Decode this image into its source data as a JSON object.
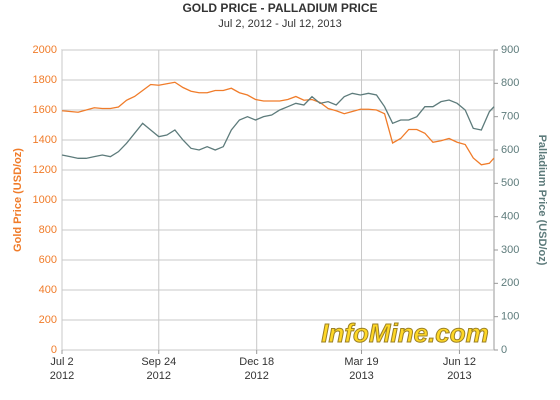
{
  "chart_data": {
    "type": "line",
    "title": "GOLD PRICE - PALLADIUM PRICE",
    "subtitle": "Jul 2, 2012 - Jul 12, 2013",
    "y_label": "Gold Price (USD/oz)",
    "y2_label": "Palladium Price (USD/oz)",
    "watermark": "InfoMine.com",
    "grid": true,
    "x": [
      "2012-07-02",
      "2012-07-09",
      "2012-07-16",
      "2012-07-23",
      "2012-07-30",
      "2012-08-06",
      "2012-08-13",
      "2012-08-20",
      "2012-08-27",
      "2012-09-03",
      "2012-09-10",
      "2012-09-17",
      "2012-09-24",
      "2012-10-01",
      "2012-10-08",
      "2012-10-15",
      "2012-10-22",
      "2012-10-29",
      "2012-11-05",
      "2012-11-12",
      "2012-11-19",
      "2012-11-26",
      "2012-12-03",
      "2012-12-10",
      "2012-12-17",
      "2012-12-24",
      "2012-12-31",
      "2013-01-07",
      "2013-01-14",
      "2013-01-21",
      "2013-01-28",
      "2013-02-04",
      "2013-02-11",
      "2013-02-18",
      "2013-02-25",
      "2013-03-04",
      "2013-03-11",
      "2013-03-18",
      "2013-03-25",
      "2013-04-01",
      "2013-04-08",
      "2013-04-15",
      "2013-04-22",
      "2013-04-29",
      "2013-05-06",
      "2013-05-13",
      "2013-05-20",
      "2013-05-27",
      "2013-06-03",
      "2013-06-10",
      "2013-06-17",
      "2013-06-24",
      "2013-07-01",
      "2013-07-08",
      "2013-07-12"
    ],
    "xlim": [
      "2012-07-02",
      "2013-07-12"
    ],
    "xticks": [
      {
        "value": "2012-07-02",
        "label": [
          "Jul 2",
          "2012"
        ]
      },
      {
        "value": "2012-09-24",
        "label": [
          "Sep 24",
          "2012"
        ]
      },
      {
        "value": "2012-12-18",
        "label": [
          "Dec 18",
          "2012"
        ]
      },
      {
        "value": "2013-03-19",
        "label": [
          "Mar 19",
          "2013"
        ]
      },
      {
        "value": "2013-06-12",
        "label": [
          "Jun 12",
          "2013"
        ]
      }
    ],
    "ylim": [
      0,
      2000
    ],
    "yticks": [
      0,
      200,
      400,
      600,
      800,
      1000,
      1200,
      1400,
      1600,
      1800,
      2000
    ],
    "y2lim": [
      0,
      900
    ],
    "y2ticks": [
      0,
      100,
      200,
      300,
      400,
      500,
      600,
      700,
      800,
      900
    ],
    "series": [
      {
        "name": "Gold Price",
        "color": "#f07c2a",
        "values": [
          1595,
          1590,
          1585,
          1600,
          1615,
          1610,
          1610,
          1620,
          1665,
          1690,
          1730,
          1770,
          1765,
          1775,
          1785,
          1750,
          1725,
          1715,
          1715,
          1730,
          1730,
          1745,
          1715,
          1700,
          1670,
          1660,
          1660,
          1660,
          1670,
          1690,
          1665,
          1670,
          1650,
          1610,
          1595,
          1575,
          1590,
          1605,
          1605,
          1600,
          1575,
          1380,
          1410,
          1470,
          1470,
          1445,
          1385,
          1395,
          1410,
          1385,
          1370,
          1280,
          1235,
          1245,
          1280
        ]
      },
      {
        "name": "Palladium Price",
        "color": "#5d7b7b",
        "axis": "y2",
        "values": [
          585,
          580,
          575,
          575,
          580,
          585,
          580,
          595,
          620,
          650,
          680,
          660,
          640,
          645,
          660,
          630,
          605,
          600,
          610,
          600,
          610,
          660,
          690,
          700,
          690,
          700,
          705,
          720,
          730,
          740,
          735,
          760,
          740,
          745,
          735,
          760,
          770,
          765,
          770,
          765,
          730,
          680,
          690,
          690,
          700,
          730,
          730,
          745,
          750,
          740,
          720,
          665,
          660,
          715,
          730
        ]
      }
    ]
  }
}
